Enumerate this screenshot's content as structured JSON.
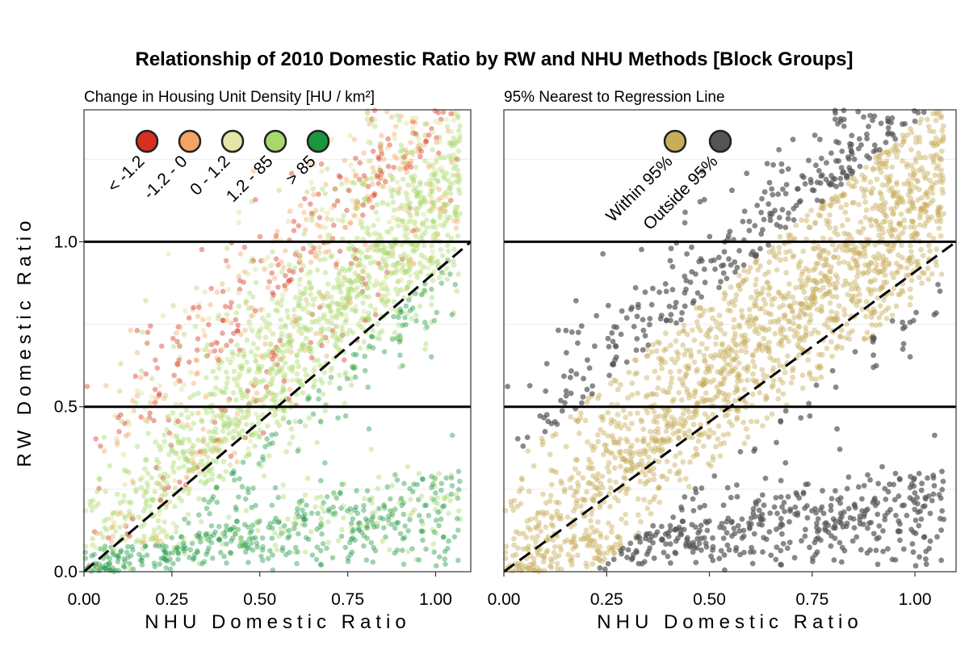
{
  "title": "Relationship of 2010 Domestic Ratio by RW and NHU Methods [Block Groups]",
  "ylabel": "RW Domestic Ratio",
  "chart_data": [
    {
      "type": "scatter",
      "subtitle": "Change in Housing Unit Density [HU / km²]",
      "xlabel": "NHU Domestic Ratio",
      "ylabel": "RW Domestic Ratio",
      "xlim": [
        0,
        1.1
      ],
      "ylim": [
        0,
        1.4
      ],
      "x_ticks": [
        "0.00",
        "0.25",
        "0.50",
        "0.75",
        "1.00"
      ],
      "x_tick_values": [
        0,
        0.25,
        0.5,
        0.75,
        1.0
      ],
      "y_ticks": [
        "0.0",
        "0.5",
        "1.0"
      ],
      "y_tick_values": [
        0,
        0.5,
        1.0
      ],
      "reference_lines": [
        {
          "kind": "horizontal",
          "y": 0.5
        },
        {
          "kind": "horizontal",
          "y": 1.0
        },
        {
          "kind": "diagonal-dashed",
          "from": [
            0,
            0
          ],
          "to": [
            1.1,
            1.0
          ]
        }
      ],
      "legend": [
        {
          "label": "< -1.2",
          "color": "#d7301f"
        },
        {
          "label": "-1.2 - 0",
          "color": "#f4a460"
        },
        {
          "label": "0 - 1.2",
          "color": "#e3e6a8"
        },
        {
          "label": "1.2 - 85",
          "color": "#a6d96a"
        },
        {
          "label": "> 85",
          "color": "#1a9641"
        }
      ],
      "legend_position": "top-left",
      "series": [
        {
          "name": "< -1.2",
          "color": "#d7301f",
          "distribution": "above regression line, x 0.0–1.05"
        },
        {
          "name": "-1.2 - 0",
          "color": "#f4a460",
          "distribution": "above regression line, x 0.0–1.05"
        },
        {
          "name": "0 - 1.2",
          "color": "#e3e6a8",
          "distribution": "upper band, x 0.1–1.05"
        },
        {
          "name": "1.2 - 85",
          "color": "#a6d96a",
          "distribution": "main band y ≈ 0.05 + 1.05x"
        },
        {
          "name": "> 85",
          "color": "#1a9641",
          "distribution": "below regression line, concentrated near y ≈ 0"
        }
      ]
    },
    {
      "type": "scatter",
      "subtitle": "95% Nearest to Regression Line",
      "xlabel": "NHU Domestic Ratio",
      "ylabel": "",
      "xlim": [
        0,
        1.1
      ],
      "ylim": [
        0,
        1.4
      ],
      "x_ticks": [
        "0.00",
        "0.25",
        "0.50",
        "0.75",
        "1.00"
      ],
      "x_tick_values": [
        0,
        0.25,
        0.5,
        0.75,
        1.0
      ],
      "reference_lines": [
        {
          "kind": "horizontal",
          "y": 0.5
        },
        {
          "kind": "horizontal",
          "y": 1.0
        },
        {
          "kind": "diagonal-dashed",
          "from": [
            0,
            0
          ],
          "to": [
            1.1,
            1.0
          ]
        }
      ],
      "legend": [
        {
          "label": "Within 95%",
          "color": "#c8ae5a"
        },
        {
          "label": "Outside 95%",
          "color": "#555555"
        }
      ],
      "legend_position": "top-left",
      "series": [
        {
          "name": "Within 95%",
          "color": "#c8ae5a",
          "distribution": "band y ≈ 0.04 + 1.05x ± 0.27"
        },
        {
          "name": "Outside 95%",
          "color": "#555555",
          "distribution": "points outside the band"
        }
      ]
    }
  ]
}
